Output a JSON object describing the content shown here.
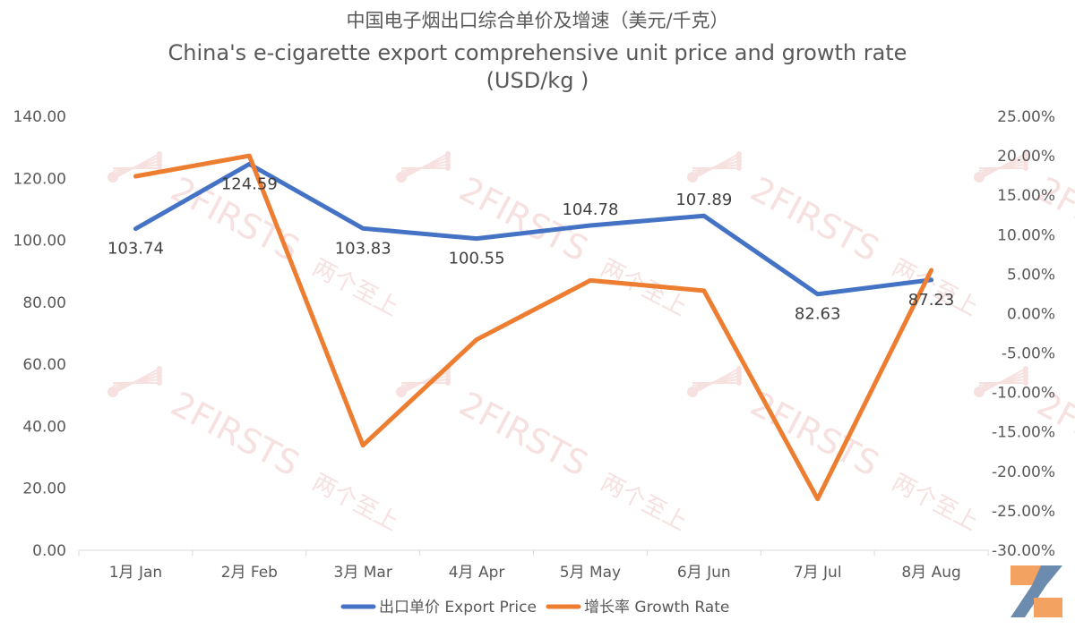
{
  "chart_data": {
    "type": "line",
    "title": "中国电子烟出口综合单价及增速（美元/千克）",
    "subtitle_line1": "China's e-cigarette export comprehensive unit price and growth rate",
    "subtitle_line2": "(USD/kg )",
    "categories": [
      "1月 Jan",
      "2月 Feb",
      "3月 Mar",
      "4月 Apr",
      "5月 May",
      "6月 Jun",
      "7月 Jul",
      "8月 Aug"
    ],
    "series": [
      {
        "name": "出口单价 Export Price",
        "axis": "left",
        "color": "#4472C4",
        "values": [
          103.74,
          124.59,
          103.83,
          100.55,
          104.78,
          107.89,
          82.63,
          87.23
        ],
        "data_labels": [
          "103.74",
          "124.59",
          "103.83",
          "100.55",
          "104.78",
          "107.89",
          "82.63",
          "87.23"
        ]
      },
      {
        "name": "增长率 Growth Rate",
        "axis": "right",
        "color": "#ED7D31",
        "values": [
          17.4,
          20.0,
          -16.7,
          -3.3,
          4.2,
          2.9,
          -23.5,
          5.5
        ]
      }
    ],
    "y_left": {
      "min": 0,
      "max": 140,
      "step": 20,
      "tick_labels": [
        "0.00",
        "20.00",
        "40.00",
        "60.00",
        "80.00",
        "100.00",
        "120.00",
        "140.00"
      ]
    },
    "y_right": {
      "min": -30,
      "max": 25,
      "step": 5,
      "tick_labels": [
        "-30.00%",
        "-25.00%",
        "-20.00%",
        "-15.00%",
        "-10.00%",
        "-5.00%",
        "0.00%",
        "5.00%",
        "10.00%",
        "15.00%",
        "20.00%",
        "25.00%"
      ]
    },
    "grid": false,
    "legend_position": "bottom"
  },
  "watermark": {
    "brand": "2FIRSTS",
    "brand_cn": "两个至上",
    "color": "#f0c8c8"
  },
  "logo": {
    "name": "2firsts-logo-icon",
    "colors": [
      "#F4A261",
      "#6B8CAE"
    ]
  }
}
